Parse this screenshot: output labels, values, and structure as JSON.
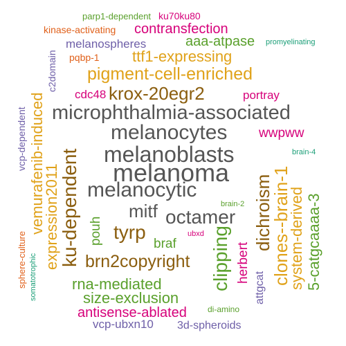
{
  "colors": {
    "dark_gray": "#555555",
    "brown": "#8b5e0f",
    "gold": "#e0a21a",
    "magenta": "#d6007a",
    "green": "#5aa02c",
    "purple": "#6e5fa8",
    "orange": "#e0601a",
    "teal": "#1a9e77",
    "background": "#ffffff"
  },
  "words": {
    "parp1_dependent": "parp1-dependent",
    "ku70ku80": "ku70ku80",
    "kinase_activating": "kinase-activating",
    "contransfection": "contransfection",
    "melanospheres": "melanospheres",
    "aaa_atpase": "aaa-atpase",
    "promyelinating": "promyelinating",
    "c2domain": "c2domain",
    "pqbp_1": "pqbp-1",
    "ttf1_expressing": "ttf1-expressing",
    "pigment_cell_enriched": "pigment-cell-enriched",
    "cdc48": "cdc48",
    "krox_20egr2": "krox-20egr2",
    "portray": "portray",
    "microphthalmia_associated": "microphthalmia-associated",
    "melanocytes": "melanocytes",
    "wwpww": "wwpww",
    "vcp_dependent": "vcp-dependent",
    "vemurafenib_induced": "vemurafenib-induced",
    "melanoblasts": "melanoblasts",
    "brain_4": "brain-4",
    "expression2011": "expression2011",
    "ku_dependent": "ku-dependent",
    "melanoma": "melanoma",
    "dichroism": "dichroism",
    "clones_brain_1": "clones--brain-1",
    "system_derived": "system-derived",
    "catgcaaaa": "5-catgcaaaa-3",
    "melanocytic": "melanocytic",
    "brain_2": "brain-2",
    "mitf": "mitf",
    "octamer": "octamer",
    "pouh": "pouh",
    "tyrp": "tyrp",
    "braf": "braf",
    "ubxd": "ubxd",
    "brn2copyright": "brn2copyright",
    "clipping": "clipping",
    "herbert": "herbert",
    "sphere_culture": "sphere-culture",
    "somatotrophic": "somatotrophic",
    "attgcat": "attgcat",
    "rna_mediated": "rna-mediated",
    "size_exclusion": "size-exclusion",
    "antisense_ablated": "antisense-ablated",
    "di_amino": "di-amino",
    "vcp_ubxn10": "vcp-ubxn10",
    "spheroids": "3d-spheroids"
  }
}
